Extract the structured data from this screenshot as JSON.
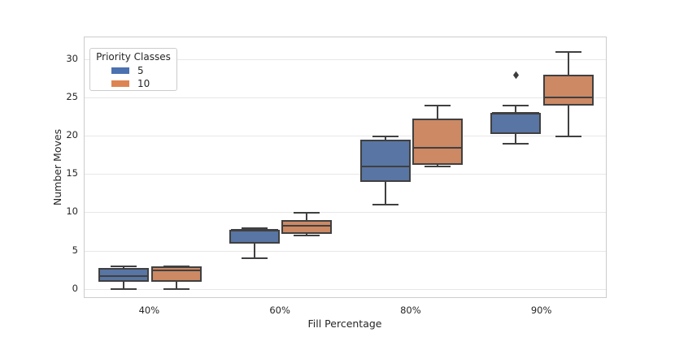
{
  "chart_data": {
    "type": "boxplot",
    "title": "",
    "xlabel": "Fill Percentage",
    "ylabel": "Number Moves",
    "categories": [
      "40%",
      "60%",
      "80%",
      "90%"
    ],
    "y_ticks": [
      0,
      5,
      10,
      15,
      20,
      25,
      30
    ],
    "ylim": [
      -1.25,
      32.9
    ],
    "grid": "horizontal",
    "legend": {
      "title": "Priority Classes",
      "position": "upper left",
      "entries": [
        {
          "label": "5",
          "color": "#4C72B0"
        },
        {
          "label": "10",
          "color": "#DD8452"
        }
      ]
    },
    "colors": {
      "box_edge": "#404040",
      "flier": "#3c3c3c",
      "grid": "#e7e7e7",
      "spine": "#cccccc"
    },
    "series": [
      {
        "name": "5",
        "fill": "#5875A3",
        "boxes": [
          {
            "whislo": 0,
            "q1": 1,
            "med": 1.75,
            "q3": 2.75,
            "whishi": 3,
            "fliers": []
          },
          {
            "whislo": 4,
            "q1": 6,
            "med": 7.75,
            "q3": 7.75,
            "whishi": 8,
            "fliers": []
          },
          {
            "whislo": 11,
            "q1": 14,
            "med": 16,
            "q3": 19.5,
            "whishi": 20,
            "fliers": []
          },
          {
            "whislo": 19,
            "q1": 20.25,
            "med": 23,
            "q3": 23,
            "whishi": 24,
            "fliers": [
              28
            ]
          }
        ]
      },
      {
        "name": "10",
        "fill": "#CC8964",
        "boxes": [
          {
            "whislo": 0,
            "q1": 1,
            "med": 2.5,
            "q3": 3,
            "whishi": 3,
            "fliers": []
          },
          {
            "whislo": 7,
            "q1": 7.25,
            "med": 8.25,
            "q3": 9,
            "whishi": 10,
            "fliers": []
          },
          {
            "whislo": 16,
            "q1": 16.25,
            "med": 18.5,
            "q3": 22.25,
            "whishi": 24,
            "fliers": []
          },
          {
            "whislo": 20,
            "q1": 24,
            "med": 25,
            "q3": 28,
            "whishi": 31,
            "fliers": []
          }
        ]
      }
    ]
  }
}
